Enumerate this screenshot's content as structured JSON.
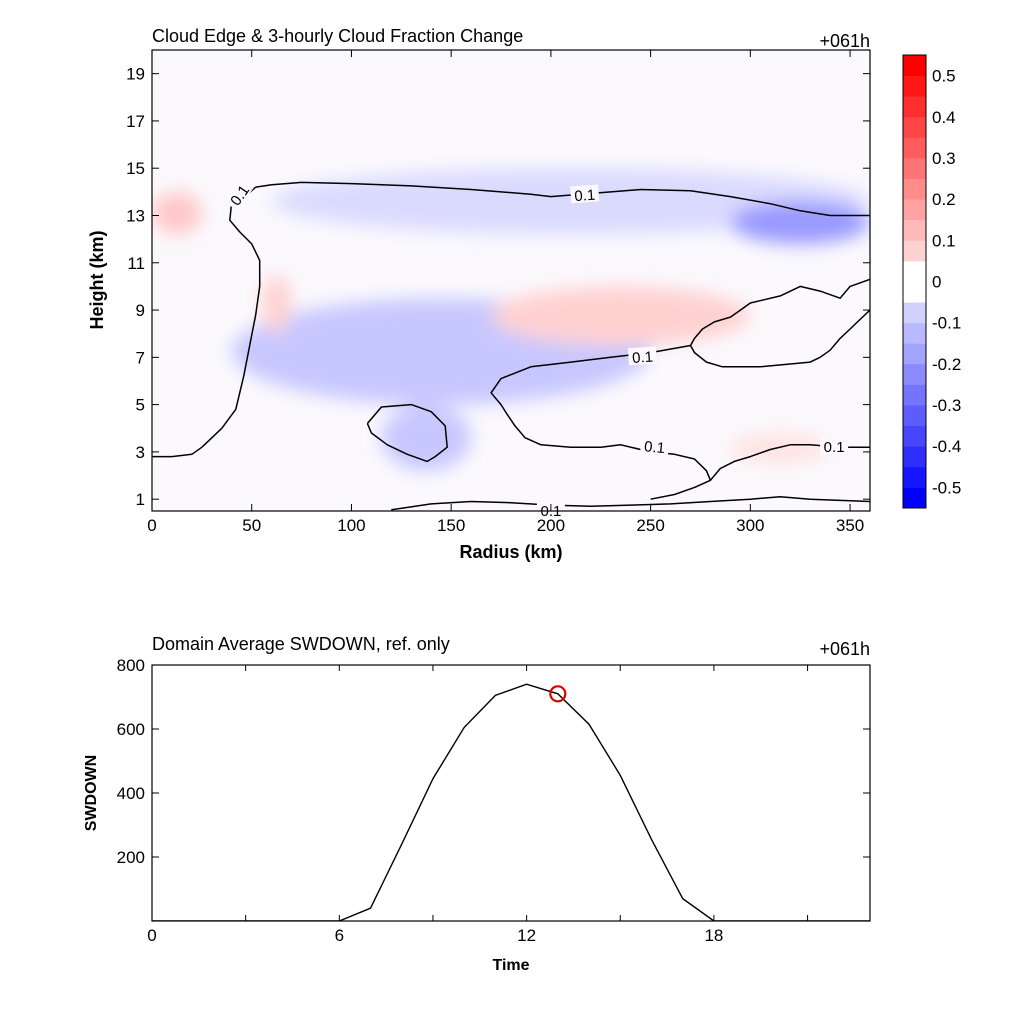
{
  "chart_data": [
    {
      "type": "heatmap",
      "title": "Cloud Edge & 3-hourly Cloud Fraction Change",
      "time_label": "+061h",
      "xlabel": "Radius (km)",
      "ylabel": "Height (km)",
      "xlim": [
        0,
        360
      ],
      "ylim": [
        0.5,
        20
      ],
      "x_ticks": [
        "0",
        "50",
        "100",
        "150",
        "200",
        "250",
        "300",
        "350"
      ],
      "y_ticks": [
        "1",
        "3",
        "5",
        "7",
        "9",
        "11",
        "13",
        "15",
        "17",
        "19"
      ],
      "colorbar": {
        "levels": [
          -0.55,
          -0.5,
          -0.45,
          -0.4,
          -0.35,
          -0.3,
          -0.25,
          -0.2,
          -0.15,
          -0.1,
          -0.05,
          0.05,
          0.1,
          0.15,
          0.2,
          0.25,
          0.3,
          0.35,
          0.4,
          0.45,
          0.5,
          0.55
        ],
        "tick_labels": [
          "0.5",
          "0.4",
          "0.3",
          "0.2",
          "0.1",
          "0",
          "-0.1",
          "-0.2",
          "-0.3",
          "-0.4",
          "-0.5"
        ],
        "colors": {
          "negative": "#0000ff",
          "zero": "#ffffff",
          "positive": "#ff0000"
        }
      },
      "contour_label": "0.1",
      "fields": [
        {
          "sign": -1,
          "value": 0.08,
          "x": [
            60,
            360
          ],
          "y": [
            12.2,
            15.0
          ],
          "desc": "upper cloud-edge decrease"
        },
        {
          "sign": -1,
          "value": 0.22,
          "x": [
            290,
            360
          ],
          "y": [
            11.8,
            13.6
          ],
          "desc": "strong upper decrease near outer radius"
        },
        {
          "sign": -1,
          "value": 0.12,
          "x": [
            40,
            250
          ],
          "y": [
            5.0,
            9.5
          ],
          "desc": "mid-level decrease"
        },
        {
          "sign": -1,
          "value": 0.12,
          "x": [
            115,
            160
          ],
          "y": [
            2.2,
            5.0
          ],
          "desc": "low-level decrease inside closed contour"
        },
        {
          "sign": 1,
          "value": 0.1,
          "x": [
            170,
            300
          ],
          "y": [
            7.5,
            10.0
          ],
          "desc": "mid-level increase"
        },
        {
          "sign": 1,
          "value": 0.12,
          "x": [
            0,
            25
          ],
          "y": [
            12.2,
            14.0
          ],
          "desc": "upper increase near center"
        },
        {
          "sign": 1,
          "value": 0.1,
          "x": [
            55,
            70
          ],
          "y": [
            8.0,
            10.5
          ],
          "desc": "narrow increase"
        },
        {
          "sign": 1,
          "value": 0.06,
          "x": [
            290,
            340
          ],
          "y": [
            2.5,
            3.8
          ],
          "desc": "weak low-level increase"
        }
      ],
      "contours": [
        {
          "value": 0.1,
          "points": [
            [
              52,
              14.2
            ],
            [
              60,
              14.3
            ],
            [
              75,
              14.4
            ],
            [
              100,
              14.35
            ],
            [
              130,
              14.25
            ],
            [
              160,
              14.1
            ],
            [
              190,
              13.9
            ],
            [
              200,
              13.8
            ],
            [
              215,
              13.9
            ],
            [
              245,
              14.1
            ],
            [
              270,
              14.05
            ],
            [
              290,
              13.8
            ],
            [
              310,
              13.5
            ],
            [
              325,
              13.2
            ],
            [
              340,
              13.0
            ],
            [
              360,
              13.0
            ]
          ]
        },
        {
          "value": 0.1,
          "points": [
            [
              52,
              14.2
            ],
            [
              48,
              13.9
            ],
            [
              40,
              13.6
            ],
            [
              39,
              12.8
            ],
            [
              44,
              12.3
            ],
            [
              50,
              11.8
            ],
            [
              54,
              11.1
            ],
            [
              54,
              10.0
            ],
            [
              52,
              8.8
            ],
            [
              49,
              7.5
            ],
            [
              46,
              6.2
            ],
            [
              42,
              4.8
            ],
            [
              35,
              4.0
            ],
            [
              25,
              3.2
            ],
            [
              20,
              2.9
            ],
            [
              10,
              2.8
            ],
            [
              0,
              2.8
            ]
          ]
        },
        {
          "value": 0.1,
          "points": [
            [
              108,
              4.2
            ],
            [
              115,
              4.9
            ],
            [
              130,
              5.0
            ],
            [
              140,
              4.7
            ],
            [
              147,
              4.1
            ],
            [
              148,
              3.2
            ],
            [
              142,
              2.8
            ],
            [
              138,
              2.6
            ],
            [
              128,
              2.9
            ],
            [
              118,
              3.3
            ],
            [
              110,
              3.8
            ],
            [
              108,
              4.2
            ]
          ]
        },
        {
          "value": 0.1,
          "points": [
            [
              360,
              10.3
            ],
            [
              350,
              10.0
            ],
            [
              345,
              9.5
            ],
            [
              335,
              9.8
            ],
            [
              325,
              10.0
            ],
            [
              315,
              9.6
            ],
            [
              300,
              9.3
            ],
            [
              295,
              9.0
            ],
            [
              290,
              8.7
            ],
            [
              282,
              8.5
            ],
            [
              276,
              8.2
            ],
            [
              272,
              7.8
            ],
            [
              270,
              7.5
            ],
            [
              272,
              7.2
            ],
            [
              278,
              6.8
            ],
            [
              286,
              6.6
            ],
            [
              305,
              6.6
            ],
            [
              330,
              6.8
            ],
            [
              335,
              7.0
            ],
            [
              340,
              7.3
            ],
            [
              345,
              7.8
            ],
            [
              350,
              8.2
            ],
            [
              355,
              8.6
            ],
            [
              360,
              9.0
            ]
          ]
        },
        {
          "value": 0.1,
          "points": [
            [
              270,
              7.5
            ],
            [
              250,
              7.2
            ],
            [
              230,
              7.0
            ],
            [
              210,
              6.8
            ],
            [
              190,
              6.6
            ],
            [
              175,
              6.1
            ],
            [
              170,
              5.5
            ],
            [
              175,
              5.0
            ],
            [
              178,
              4.6
            ],
            [
              182,
              4.1
            ],
            [
              187,
              3.6
            ],
            [
              195,
              3.3
            ],
            [
              210,
              3.2
            ],
            [
              225,
              3.2
            ],
            [
              235,
              3.3
            ],
            [
              250,
              3.0
            ],
            [
              262,
              2.9
            ],
            [
              272,
              2.7
            ],
            [
              278,
              2.2
            ],
            [
              280,
              1.8
            ],
            [
              272,
              1.5
            ],
            [
              262,
              1.2
            ],
            [
              250,
              1.0
            ]
          ]
        },
        {
          "value": 0.1,
          "points": [
            [
              280,
              1.8
            ],
            [
              285,
              2.3
            ],
            [
              292,
              2.6
            ],
            [
              300,
              2.8
            ],
            [
              310,
              3.1
            ],
            [
              320,
              3.3
            ],
            [
              330,
              3.3
            ],
            [
              345,
              3.2
            ],
            [
              360,
              3.2
            ]
          ]
        },
        {
          "value": 0.1,
          "points": [
            [
              120,
              0.55
            ],
            [
              140,
              0.8
            ],
            [
              160,
              0.9
            ],
            [
              180,
              0.85
            ],
            [
              200,
              0.75
            ],
            [
              220,
              0.7
            ],
            [
              240,
              0.75
            ],
            [
              260,
              0.8
            ],
            [
              280,
              0.9
            ],
            [
              300,
              1.0
            ],
            [
              315,
              1.1
            ],
            [
              330,
              1.0
            ],
            [
              360,
              0.9
            ]
          ]
        }
      ]
    },
    {
      "type": "line",
      "title": "Domain Average SWDOWN, ref. only",
      "time_label": "+061h",
      "xlabel": "Time",
      "ylabel": "SWDOWN",
      "xlim": [
        0,
        23
      ],
      "ylim": [
        0,
        800
      ],
      "x_ticks": [
        "0",
        "6",
        "12",
        "18"
      ],
      "y_ticks": [
        "200",
        "400",
        "600",
        "800"
      ],
      "x": [
        0,
        1,
        2,
        3,
        4,
        5,
        6,
        7,
        8,
        9,
        10,
        11,
        12,
        13,
        14,
        15,
        16,
        17,
        18,
        19,
        20,
        21,
        22,
        23
      ],
      "values": [
        0,
        0,
        0,
        0,
        0,
        0,
        0,
        40,
        240,
        445,
        605,
        705,
        740,
        710,
        615,
        455,
        255,
        70,
        0,
        0,
        0,
        0,
        0,
        0
      ],
      "marker": {
        "x": 13,
        "y": 710,
        "color": "#e00000"
      }
    }
  ]
}
